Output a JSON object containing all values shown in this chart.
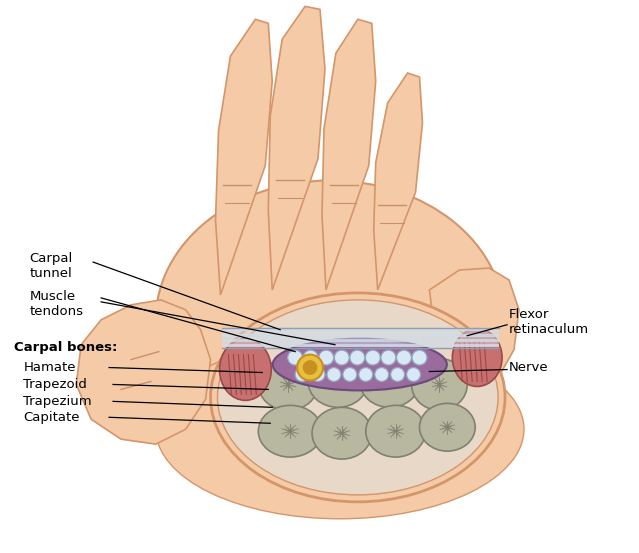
{
  "skin_color": "#F5CBA7",
  "skin_dark": "#D4956A",
  "bone_color": "#B8B8A0",
  "bone_dark": "#808070",
  "muscle_color": "#C87070",
  "muscle_dark": "#9A4848",
  "tunnel_purple": "#9B6B9E",
  "tendon_white": "#D8E8F4",
  "tendon_edge": "#90A8C0",
  "nerve_yellow": "#E8C040",
  "nerve_orange": "#C89020",
  "ret_color": "#D0DCE8",
  "ret_edge": "#909DB0",
  "bg_color": "#FFFFFF",
  "text_color": "#000000",
  "crease_color": "#C8906A",
  "label_carpal_tunnel": "Carpal\ntunnel",
  "label_muscle_tendons": "Muscle\ntendons",
  "label_carpal_bones": "Carpal bones:",
  "label_hamate": "Hamate",
  "label_trapezoid": "Trapezoid",
  "label_trapezium": "Trapezium",
  "label_capitate": "Capitate",
  "label_flexor_retinaculum": "Flexor\nretinaculum",
  "label_nerve": "Nerve"
}
